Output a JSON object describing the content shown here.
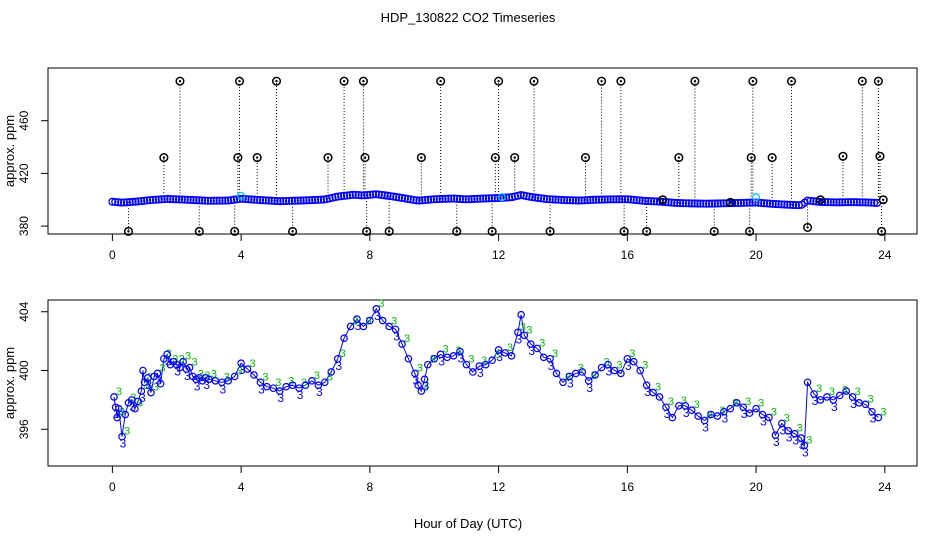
{
  "figure": {
    "title": "HDP_130822  CO2 Timeseries",
    "xlabel": "Hour of Day (UTC)"
  },
  "chart_data": [
    {
      "type": "scatter",
      "title": "",
      "xlabel": "",
      "ylabel": "approx. ppm",
      "xlim": [
        -2.0,
        25.0
      ],
      "ylim": [
        374,
        500
      ],
      "xticks": [
        0,
        4,
        8,
        12,
        16,
        20,
        24
      ],
      "yticks": [
        380,
        420,
        460
      ],
      "grid": false,
      "legend": "none",
      "colors": {
        "series": "#0000ff",
        "flagged": "#000000",
        "spike_line": "#000000",
        "highlight": "#00c8ff"
      },
      "baseline": [
        [
          0.0,
          398.5
        ],
        [
          0.3,
          397.8
        ],
        [
          0.8,
          398.7
        ],
        [
          1.2,
          399.8
        ],
        [
          1.7,
          400.6
        ],
        [
          2.3,
          400.0
        ],
        [
          3.0,
          399.2
        ],
        [
          3.6,
          399.4
        ],
        [
          4.0,
          400.8
        ],
        [
          4.5,
          399.9
        ],
        [
          5.2,
          398.9
        ],
        [
          6.0,
          399.5
        ],
        [
          6.6,
          400.2
        ],
        [
          7.0,
          402.4
        ],
        [
          7.5,
          403.8
        ],
        [
          7.8,
          403.3
        ],
        [
          8.2,
          404.2
        ],
        [
          8.6,
          402.9
        ],
        [
          9.0,
          401.4
        ],
        [
          9.5,
          399.3
        ],
        [
          10.0,
          400.4
        ],
        [
          10.6,
          400.9
        ],
        [
          11.0,
          400.3
        ],
        [
          11.5,
          400.9
        ],
        [
          12.0,
          401.3
        ],
        [
          12.4,
          401.9
        ],
        [
          12.7,
          403.6
        ],
        [
          13.0,
          402.1
        ],
        [
          13.5,
          400.5
        ],
        [
          14.0,
          399.8
        ],
        [
          14.5,
          399.4
        ],
        [
          15.0,
          400.0
        ],
        [
          15.5,
          400.3
        ],
        [
          16.0,
          400.4
        ],
        [
          16.5,
          399.2
        ],
        [
          17.0,
          398.6
        ],
        [
          17.5,
          397.6
        ],
        [
          18.0,
          397.2
        ],
        [
          18.5,
          397.0
        ],
        [
          19.0,
          397.3
        ],
        [
          19.5,
          397.6
        ],
        [
          20.0,
          397.9
        ],
        [
          20.5,
          396.9
        ],
        [
          21.0,
          396.2
        ],
        [
          21.4,
          395.8
        ],
        [
          21.6,
          399.4
        ],
        [
          22.0,
          398.3
        ],
        [
          22.5,
          398.0
        ],
        [
          23.0,
          398.2
        ],
        [
          23.5,
          397.9
        ],
        [
          23.8,
          397.5
        ]
      ],
      "flagged_points": [
        [
          0.5,
          376
        ],
        [
          1.6,
          432
        ],
        [
          2.1,
          490
        ],
        [
          2.7,
          376
        ],
        [
          3.8,
          376
        ],
        [
          3.9,
          432
        ],
        [
          3.95,
          490
        ],
        [
          4.5,
          432
        ],
        [
          5.1,
          490
        ],
        [
          5.6,
          376
        ],
        [
          6.7,
          432
        ],
        [
          7.2,
          490
        ],
        [
          7.8,
          490
        ],
        [
          7.85,
          432
        ],
        [
          7.9,
          376
        ],
        [
          8.6,
          376
        ],
        [
          9.6,
          432
        ],
        [
          10.2,
          490
        ],
        [
          10.7,
          376
        ],
        [
          11.8,
          376
        ],
        [
          11.9,
          432
        ],
        [
          12.0,
          490
        ],
        [
          12.5,
          432
        ],
        [
          13.1,
          490
        ],
        [
          13.6,
          376
        ],
        [
          14.7,
          432
        ],
        [
          15.2,
          490
        ],
        [
          15.8,
          490
        ],
        [
          15.9,
          376
        ],
        [
          16.6,
          376
        ],
        [
          17.1,
          400
        ],
        [
          17.6,
          432
        ],
        [
          18.1,
          490
        ],
        [
          18.7,
          376
        ],
        [
          19.2,
          398
        ],
        [
          19.8,
          376
        ],
        [
          19.85,
          432
        ],
        [
          19.9,
          490
        ],
        [
          20.5,
          432
        ],
        [
          21.1,
          490
        ],
        [
          21.6,
          379
        ],
        [
          22.0,
          400
        ],
        [
          22.7,
          433
        ],
        [
          23.3,
          490
        ],
        [
          23.8,
          490
        ],
        [
          23.85,
          433
        ],
        [
          23.9,
          376
        ],
        [
          23.95,
          400
        ]
      ],
      "highlighted_points": [
        [
          4.0,
          403
        ],
        [
          12.1,
          402
        ],
        [
          20.0,
          402
        ]
      ]
    },
    {
      "type": "scatter",
      "title": "",
      "xlabel": "",
      "ylabel": "approx. ppm",
      "xlim": [
        -2.0,
        25.0
      ],
      "ylim": [
        393.5,
        404.8
      ],
      "xticks": [
        0,
        4,
        8,
        12,
        16,
        20,
        24
      ],
      "yticks": [
        396,
        400,
        404
      ],
      "grid": false,
      "legend": "none",
      "marker_glyph": "3",
      "colors": {
        "series": "#0000ff",
        "secondary": "#00bb00"
      },
      "series": [
        {
          "name": "",
          "points": [
            [
              0.05,
              398.2
            ],
            [
              0.1,
              397.5
            ],
            [
              0.15,
              396.8
            ],
            [
              0.2,
              397.4
            ],
            [
              0.3,
              395.5
            ],
            [
              0.4,
              397.0
            ],
            [
              0.5,
              397.8
            ],
            [
              0.6,
              398.0
            ],
            [
              0.7,
              397.4
            ],
            [
              0.8,
              397.9
            ],
            [
              0.9,
              398.6
            ],
            [
              0.95,
              400.0
            ],
            [
              1.0,
              399.2
            ],
            [
              1.1,
              399.5
            ],
            [
              1.2,
              398.5
            ],
            [
              1.3,
              399.6
            ],
            [
              1.4,
              399.8
            ],
            [
              1.5,
              399.1
            ],
            [
              1.6,
              400.8
            ],
            [
              1.7,
              401.1
            ],
            [
              1.8,
              400.4
            ],
            [
              1.9,
              400.6
            ],
            [
              2.0,
              400.4
            ],
            [
              2.1,
              400.2
            ],
            [
              2.2,
              400.6
            ],
            [
              2.3,
              400.1
            ],
            [
              2.4,
              400.2
            ],
            [
              2.5,
              399.6
            ],
            [
              2.6,
              399.4
            ],
            [
              2.7,
              399.5
            ],
            [
              2.8,
              399.3
            ],
            [
              2.9,
              399.5
            ],
            [
              3.0,
              399.4
            ],
            [
              3.2,
              399.3
            ],
            [
              3.4,
              399.2
            ],
            [
              3.6,
              399.3
            ],
            [
              3.8,
              399.6
            ],
            [
              4.0,
              400.5
            ],
            [
              4.2,
              400.1
            ],
            [
              4.4,
              399.7
            ],
            [
              4.6,
              399.2
            ],
            [
              4.8,
              398.9
            ],
            [
              5.0,
              398.8
            ],
            [
              5.2,
              398.6
            ],
            [
              5.4,
              398.9
            ],
            [
              5.6,
              399.0
            ],
            [
              5.8,
              398.8
            ],
            [
              6.0,
              399.0
            ],
            [
              6.2,
              399.3
            ],
            [
              6.4,
              399.0
            ],
            [
              6.6,
              399.2
            ],
            [
              6.8,
              399.9
            ],
            [
              7.0,
              400.8
            ],
            [
              7.2,
              402.2
            ],
            [
              7.4,
              403.0
            ],
            [
              7.6,
              403.5
            ],
            [
              7.8,
              403.0
            ],
            [
              8.0,
              403.4
            ],
            [
              8.2,
              404.2
            ],
            [
              8.4,
              403.4
            ],
            [
              8.6,
              403.0
            ],
            [
              8.8,
              402.8
            ],
            [
              9.0,
              401.8
            ],
            [
              9.2,
              400.8
            ],
            [
              9.4,
              399.8
            ],
            [
              9.5,
              399.0
            ],
            [
              9.6,
              398.6
            ],
            [
              9.7,
              399.4
            ],
            [
              9.8,
              400.4
            ],
            [
              10.0,
              400.8
            ],
            [
              10.2,
              401.1
            ],
            [
              10.4,
              400.9
            ],
            [
              10.6,
              401.0
            ],
            [
              10.8,
              401.3
            ],
            [
              11.0,
              400.4
            ],
            [
              11.2,
              399.9
            ],
            [
              11.4,
              400.3
            ],
            [
              11.6,
              400.4
            ],
            [
              11.8,
              400.7
            ],
            [
              12.0,
              401.4
            ],
            [
              12.2,
              401.2
            ],
            [
              12.4,
              401.0
            ],
            [
              12.6,
              402.6
            ],
            [
              12.7,
              403.8
            ],
            [
              12.8,
              402.4
            ],
            [
              13.0,
              401.8
            ],
            [
              13.2,
              401.5
            ],
            [
              13.4,
              400.9
            ],
            [
              13.6,
              400.8
            ],
            [
              13.8,
              399.8
            ],
            [
              14.0,
              399.2
            ],
            [
              14.2,
              399.6
            ],
            [
              14.4,
              399.8
            ],
            [
              14.6,
              399.9
            ],
            [
              14.8,
              399.3
            ],
            [
              15.0,
              399.7
            ],
            [
              15.2,
              400.2
            ],
            [
              15.4,
              400.4
            ],
            [
              15.6,
              400.0
            ],
            [
              15.8,
              399.8
            ],
            [
              16.0,
              400.8
            ],
            [
              16.2,
              400.6
            ],
            [
              16.4,
              400.0
            ],
            [
              16.6,
              399.0
            ],
            [
              16.8,
              398.5
            ],
            [
              17.0,
              398.2
            ],
            [
              17.2,
              397.5
            ],
            [
              17.4,
              396.8
            ],
            [
              17.6,
              397.6
            ],
            [
              17.8,
              397.6
            ],
            [
              18.0,
              397.3
            ],
            [
              18.2,
              396.9
            ],
            [
              18.4,
              396.6
            ],
            [
              18.6,
              397.0
            ],
            [
              18.8,
              396.9
            ],
            [
              19.0,
              397.2
            ],
            [
              19.2,
              397.4
            ],
            [
              19.4,
              397.8
            ],
            [
              19.6,
              397.5
            ],
            [
              19.8,
              397.1
            ],
            [
              20.0,
              397.4
            ],
            [
              20.2,
              397.0
            ],
            [
              20.4,
              396.8
            ],
            [
              20.6,
              395.6
            ],
            [
              20.8,
              396.4
            ],
            [
              21.0,
              395.9
            ],
            [
              21.2,
              395.7
            ],
            [
              21.4,
              395.4
            ],
            [
              21.5,
              394.9
            ],
            [
              21.6,
              399.2
            ],
            [
              21.8,
              398.4
            ],
            [
              22.0,
              398.0
            ],
            [
              22.2,
              398.2
            ],
            [
              22.4,
              398.0
            ],
            [
              22.6,
              398.3
            ],
            [
              22.8,
              398.6
            ],
            [
              23.0,
              398.2
            ],
            [
              23.2,
              397.8
            ],
            [
              23.4,
              397.7
            ],
            [
              23.6,
              397.2
            ],
            [
              23.8,
              396.8
            ]
          ]
        }
      ]
    }
  ]
}
